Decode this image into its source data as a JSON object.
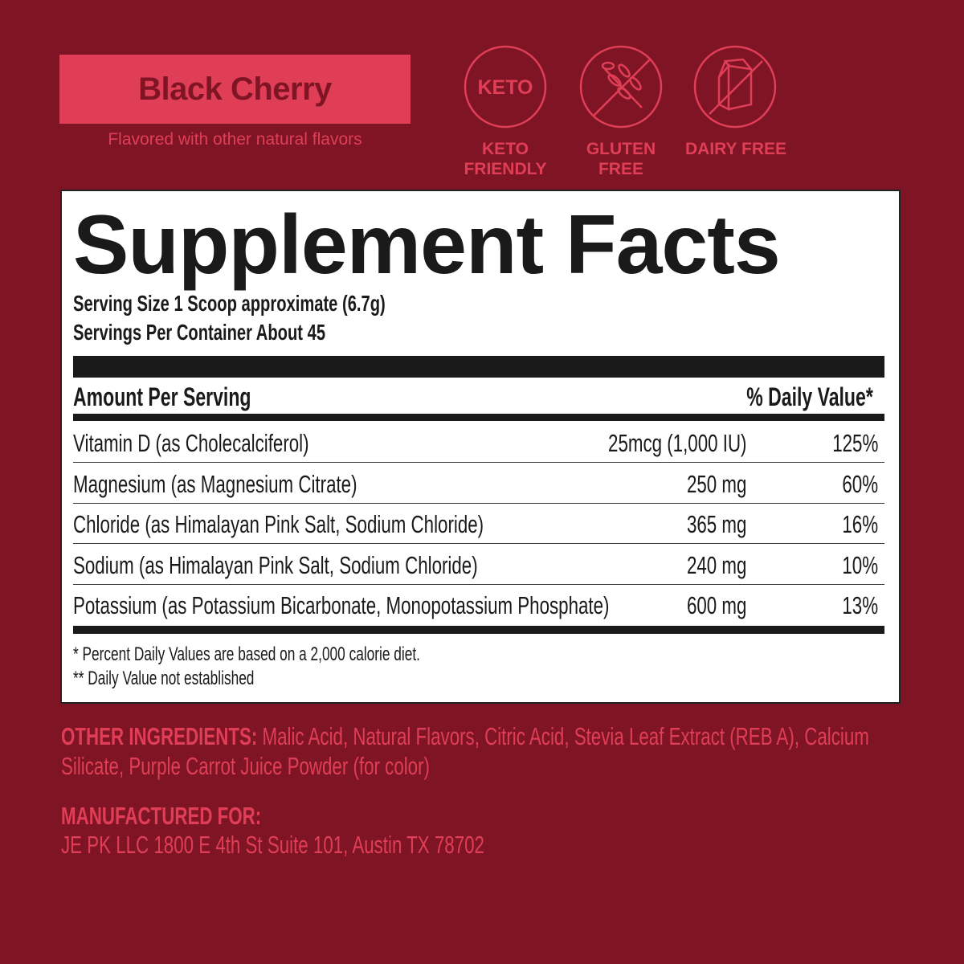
{
  "flavor": {
    "name": "Black Cherry",
    "subtitle": "Flavored with other natural flavors"
  },
  "badges": [
    {
      "icon": "keto-icon",
      "icon_text": "KETO",
      "label1": "KETO",
      "label2": "FRIENDLY"
    },
    {
      "icon": "no-wheat-icon",
      "label1": "GLUTEN",
      "label2": "FREE"
    },
    {
      "icon": "no-milk-carton-icon",
      "label1": "DAIRY FREE",
      "label2": ""
    }
  ],
  "facts": {
    "title": "Supplement Facts",
    "serving_size": "Serving Size 1 Scoop approximate (6.7g)",
    "servings_per_container": "Servings Per Container About 45",
    "amount_header": "Amount Per Serving",
    "dv_header": "% Daily Value*",
    "rows": [
      {
        "name": "Vitamin D (as Cholecalciferol)",
        "amount": "25mcg (1,000 IU)",
        "dv": "125%"
      },
      {
        "name": "Magnesium (as Magnesium Citrate)",
        "amount": "250 mg",
        "dv": "60%"
      },
      {
        "name": "Chloride (as Himalayan Pink Salt, Sodium Chloride)",
        "amount": "365 mg",
        "dv": "16%"
      },
      {
        "name": "Sodium (as Himalayan Pink Salt, Sodium Chloride)",
        "amount": "240 mg",
        "dv": "10%"
      },
      {
        "name": "Potassium (as Potassium Bicarbonate, Monopotassium Phosphate)",
        "amount": "600 mg",
        "dv": "13%"
      }
    ],
    "footnote1": "* Percent Daily Values are based on a 2,000 calorie diet.",
    "footnote2": "** Daily Value not established"
  },
  "other_ingredients": {
    "label": "OTHER INGREDIENTS:",
    "text": " Malic Acid, Natural Flavors, Citric Acid, Stevia Leaf Extract (REB A), Calcium Silicate, Purple Carrot Juice Powder (for color)"
  },
  "manufacturer": {
    "label": "MANUFACTURED FOR:",
    "address": "JE PK LLC 1800 E 4th St Suite 101, Austin TX 78702"
  },
  "colors": {
    "background": "#7f1524",
    "accent": "#e03e57"
  }
}
